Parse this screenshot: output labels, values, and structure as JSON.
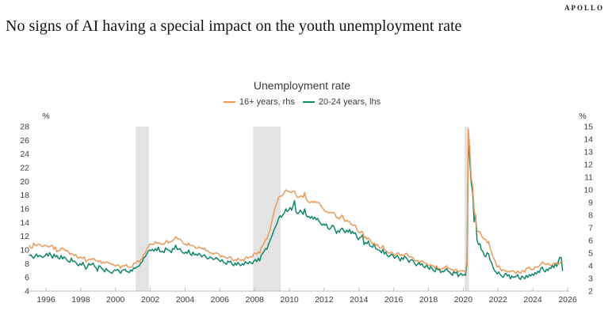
{
  "brand": "APOLLO",
  "title": "No signs of AI having a special impact on the youth unemployment rate",
  "chart_data": {
    "type": "line",
    "title": "Unemployment rate",
    "legend_position": "top-center",
    "grid": false,
    "legend": [
      {
        "label": "16+ years, rhs",
        "color": "#E8995A"
      },
      {
        "label": "20-24 years, lhs",
        "color": "#0E8769"
      }
    ],
    "left_axis": {
      "unit": "%",
      "min": 4,
      "max": 28,
      "ticks": [
        4,
        6,
        8,
        10,
        12,
        14,
        16,
        18,
        20,
        22,
        24,
        26,
        28
      ]
    },
    "right_axis": {
      "unit": "%",
      "min": 2,
      "max": 15,
      "ticks": [
        2,
        3,
        4,
        5,
        6,
        7,
        8,
        9,
        10,
        11,
        12,
        13,
        14,
        15
      ]
    },
    "x_axis": {
      "start_year": 1995,
      "frequency": "monthly",
      "ticks": [
        1996,
        1998,
        2000,
        2002,
        2004,
        2006,
        2008,
        2010,
        2012,
        2014,
        2016,
        2018,
        2020,
        2022,
        2024,
        2026
      ]
    },
    "recession_bands": [
      {
        "start": 2001.17,
        "end": 2001.92
      },
      {
        "start": 2007.92,
        "end": 2009.5
      },
      {
        "start": 2020.08,
        "end": 2020.33
      }
    ],
    "band_color": "#E3E3E3",
    "axis_color": "#BDBDBD",
    "text_color": "#3d3d3d",
    "series": [
      {
        "name": "16+ years, rhs",
        "axis": "right",
        "color": "#E8995A",
        "values": [
          5.6,
          5.4,
          5.4,
          5.8,
          5.6,
          5.6,
          5.7,
          5.7,
          5.6,
          5.5,
          5.6,
          5.6,
          5.6,
          5.5,
          5.5,
          5.6,
          5.6,
          5.3,
          5.5,
          5.1,
          5.2,
          5.2,
          5.4,
          5.4,
          5.3,
          5.2,
          5.2,
          5.1,
          4.9,
          5.0,
          4.9,
          4.8,
          4.9,
          4.7,
          4.6,
          4.7,
          4.6,
          4.6,
          4.7,
          4.3,
          4.4,
          4.5,
          4.5,
          4.5,
          4.6,
          4.5,
          4.4,
          4.4,
          4.3,
          4.4,
          4.2,
          4.3,
          4.2,
          4.3,
          4.3,
          4.2,
          4.2,
          4.1,
          4.1,
          4.0,
          4.0,
          4.1,
          4.0,
          3.8,
          4.0,
          4.0,
          4.0,
          4.1,
          3.9,
          3.9,
          3.9,
          3.9,
          4.2,
          4.2,
          4.3,
          4.4,
          4.3,
          4.5,
          4.6,
          4.9,
          5.0,
          5.3,
          5.5,
          5.7,
          5.7,
          5.7,
          5.7,
          5.9,
          5.8,
          5.8,
          5.8,
          5.7,
          5.7,
          5.7,
          5.9,
          6.0,
          5.8,
          5.9,
          5.9,
          6.0,
          6.1,
          6.3,
          6.2,
          6.1,
          6.1,
          6.0,
          5.8,
          5.7,
          5.7,
          5.6,
          5.8,
          5.6,
          5.6,
          5.6,
          5.5,
          5.4,
          5.4,
          5.5,
          5.4,
          5.4,
          5.3,
          5.4,
          5.2,
          5.2,
          5.1,
          5.0,
          5.0,
          4.9,
          5.0,
          5.0,
          5.0,
          4.9,
          4.7,
          4.8,
          4.7,
          4.7,
          4.6,
          4.6,
          4.7,
          4.7,
          4.5,
          4.4,
          4.5,
          4.4,
          4.6,
          4.5,
          4.4,
          4.5,
          4.4,
          4.6,
          4.7,
          4.6,
          4.7,
          4.7,
          4.7,
          5.0,
          5.0,
          4.9,
          5.1,
          5.0,
          5.4,
          5.6,
          5.8,
          6.1,
          6.1,
          6.5,
          6.8,
          7.3,
          7.8,
          8.3,
          8.7,
          9.0,
          9.4,
          9.5,
          9.5,
          9.6,
          9.8,
          10.0,
          9.9,
          9.9,
          9.8,
          9.8,
          9.9,
          9.9,
          9.6,
          9.4,
          9.4,
          9.5,
          9.5,
          9.4,
          9.8,
          9.3,
          9.1,
          9.0,
          9.0,
          9.1,
          9.0,
          9.1,
          9.0,
          9.0,
          9.0,
          8.8,
          8.6,
          8.5,
          8.3,
          8.3,
          8.2,
          8.2,
          8.2,
          8.2,
          8.2,
          8.1,
          7.8,
          7.8,
          7.7,
          7.9,
          8.0,
          7.7,
          7.5,
          7.6,
          7.5,
          7.5,
          7.3,
          7.2,
          7.2,
          7.2,
          6.9,
          6.7,
          6.6,
          6.7,
          6.7,
          6.2,
          6.3,
          6.1,
          6.2,
          6.1,
          5.9,
          5.7,
          5.8,
          5.6,
          5.7,
          5.5,
          5.4,
          5.4,
          5.6,
          5.3,
          5.2,
          5.1,
          5.0,
          5.0,
          5.1,
          5.0,
          4.8,
          4.9,
          5.0,
          5.0,
          4.8,
          4.9,
          4.8,
          4.9,
          5.0,
          4.9,
          4.7,
          4.7,
          4.7,
          4.6,
          4.4,
          4.4,
          4.4,
          4.3,
          4.3,
          4.4,
          4.3,
          4.2,
          4.2,
          4.1,
          4.0,
          4.1,
          4.0,
          4.0,
          3.8,
          4.0,
          3.8,
          3.8,
          3.7,
          3.8,
          3.8,
          3.9,
          4.0,
          3.8,
          3.8,
          3.7,
          3.7,
          3.6,
          3.7,
          3.7,
          3.5,
          3.6,
          3.6,
          3.6,
          3.6,
          3.5,
          4.4,
          14.8,
          13.2,
          11.0,
          10.2,
          8.4,
          7.8,
          6.8,
          6.7,
          6.7,
          6.4,
          6.2,
          6.1,
          6.1,
          5.8,
          5.9,
          5.4,
          5.1,
          4.7,
          4.5,
          4.2,
          3.9,
          4.0,
          3.8,
          3.6,
          3.7,
          3.6,
          3.6,
          3.5,
          3.6,
          3.5,
          3.6,
          3.6,
          3.5,
          3.4,
          3.6,
          3.5,
          3.4,
          3.6,
          3.6,
          3.5,
          3.8,
          3.8,
          3.9,
          3.7,
          3.7,
          3.7,
          3.9,
          3.9,
          3.9,
          4.0,
          4.1,
          4.3,
          4.2,
          4.1,
          4.1,
          4.2,
          4.1,
          4.0,
          4.1,
          4.2,
          4.2,
          4.2,
          4.1,
          4.2,
          4.3,
          4.3
        ]
      },
      {
        "name": "20-24 years, lhs",
        "axis": "left",
        "color": "#0E8769",
        "values": [
          9.2,
          9.3,
          9.0,
          8.8,
          9.1,
          9.4,
          9.0,
          9.2,
          9.1,
          8.9,
          9.0,
          9.2,
          9.5,
          9.1,
          9.6,
          9.2,
          8.8,
          9.4,
          9.0,
          9.2,
          8.8,
          8.7,
          9.2,
          8.7,
          9.0,
          8.8,
          8.5,
          8.3,
          8.2,
          8.8,
          8.3,
          8.4,
          8.2,
          7.9,
          7.7,
          8.0,
          7.8,
          8.2,
          7.7,
          7.2,
          7.5,
          8.0,
          7.8,
          7.9,
          8.1,
          7.6,
          7.4,
          6.9,
          7.7,
          7.6,
          7.3,
          7.1,
          6.8,
          7.3,
          7.0,
          6.9,
          6.7,
          6.6,
          6.9,
          7.1,
          7.0,
          7.2,
          6.9,
          6.6,
          7.0,
          7.1,
          7.2,
          6.9,
          6.8,
          6.7,
          7.1,
          6.9,
          7.4,
          7.3,
          7.5,
          7.6,
          7.7,
          8.1,
          8.3,
          8.9,
          9.0,
          9.4,
          9.8,
          10.0,
          9.9,
          10.1,
          9.8,
          10.2,
          9.9,
          10.4,
          9.8,
          9.7,
          9.8,
          9.6,
          10.3,
          10.1,
          10.0,
          9.9,
          9.6,
          10.2,
          10.1,
          10.7,
          10.1,
          10.1,
          10.2,
          9.8,
          9.6,
          9.5,
          9.7,
          9.5,
          10.0,
          9.4,
          9.2,
          9.7,
          9.3,
          9.4,
          9.2,
          9.5,
          9.3,
          9.0,
          9.2,
          9.3,
          8.9,
          8.7,
          8.8,
          9.0,
          8.8,
          8.6,
          8.7,
          8.9,
          8.7,
          8.5,
          8.3,
          8.6,
          8.2,
          8.1,
          7.9,
          8.4,
          8.2,
          8.4,
          7.9,
          7.7,
          8.1,
          7.8,
          8.2,
          7.9,
          7.7,
          8.0,
          7.8,
          8.3,
          8.1,
          8.0,
          8.3,
          8.1,
          8.0,
          8.4,
          8.6,
          8.3,
          8.8,
          8.4,
          9.2,
          9.5,
          9.8,
          10.2,
          10.1,
          10.8,
          11.3,
          11.8,
          12.4,
          13.0,
          13.4,
          13.9,
          14.6,
          15.0,
          14.8,
          15.1,
          15.4,
          16.0,
          15.6,
          15.8,
          16.2,
          15.8,
          16.4,
          17.2,
          15.6,
          15.3,
          15.4,
          15.8,
          15.5,
          15.2,
          16.0,
          15.1,
          14.8,
          14.9,
          14.6,
          14.9,
          14.5,
          14.8,
          14.4,
          14.6,
          14.2,
          13.9,
          13.6,
          13.8,
          13.6,
          13.8,
          13.2,
          13.0,
          13.2,
          13.6,
          13.5,
          13.0,
          12.4,
          12.8,
          12.6,
          13.0,
          13.2,
          12.8,
          12.5,
          12.9,
          12.6,
          13.0,
          12.4,
          12.7,
          12.4,
          12.5,
          11.9,
          11.5,
          11.8,
          11.9,
          12.2,
          10.8,
          11.1,
          10.9,
          11.3,
          10.6,
          10.5,
          10.4,
          11.0,
          10.2,
          10.1,
          10.0,
          9.9,
          9.6,
          10.1,
          9.4,
          9.7,
          9.2,
          9.0,
          9.2,
          9.4,
          9.2,
          8.8,
          9.0,
          9.2,
          8.8,
          8.4,
          8.9,
          8.6,
          9.1,
          8.9,
          8.6,
          8.2,
          8.5,
          8.6,
          8.4,
          8.0,
          7.7,
          7.9,
          8.2,
          7.8,
          8.0,
          7.6,
          7.4,
          7.8,
          7.5,
          7.2,
          7.6,
          7.3,
          7.0,
          6.8,
          7.4,
          7.1,
          7.2,
          6.7,
          6.9,
          6.8,
          7.1,
          7.3,
          6.9,
          6.8,
          6.5,
          6.3,
          6.9,
          6.6,
          6.8,
          6.1,
          6.4,
          6.6,
          6.3,
          6.4,
          6.3,
          8.0,
          25.7,
          23.2,
          19.8,
          18.3,
          14.1,
          15.1,
          11.4,
          10.8,
          10.9,
          10.0,
          9.8,
          9.2,
          9.0,
          9.6,
          9.4,
          8.5,
          8.2,
          7.5,
          7.0,
          6.8,
          6.5,
          6.8,
          6.4,
          6.2,
          6.0,
          6.4,
          6.6,
          6.2,
          6.4,
          5.8,
          6.2,
          6.0,
          6.1,
          6.1,
          6.4,
          5.9,
          5.7,
          6.2,
          6.0,
          5.8,
          6.3,
          6.0,
          6.4,
          6.2,
          6.5,
          6.3,
          6.7,
          6.5,
          6.9,
          6.7,
          7.3,
          7.5,
          7.0,
          6.8,
          7.2,
          7.0,
          7.4,
          7.3,
          7.8,
          7.4,
          8.0,
          7.6,
          8.2,
          8.9,
          8.9,
          7.0
        ]
      }
    ]
  }
}
